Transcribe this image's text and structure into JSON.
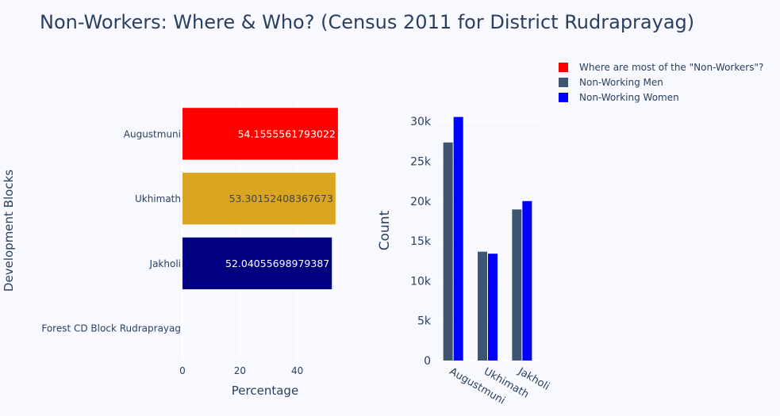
{
  "title": "Non-Workers: Where & Who? (Census 2011 for District Rudraprayag)",
  "chart_data": [
    {
      "type": "bar",
      "orientation": "horizontal",
      "categories": [
        "Augustmuni",
        "Ukhimath",
        "Jakholi",
        "Forest CD Block Rudraprayag"
      ],
      "series": [
        {
          "name": "Where are most of the \"Non-Workers\"?",
          "values": [
            54.1555561793022,
            53.30152408367673,
            52.04055698979387,
            null
          ],
          "labels": [
            "54.1555561793022",
            "53.30152408367673",
            "52.04055698979387",
            ""
          ],
          "colors": [
            "#ff0000",
            "#daa520",
            "#000080",
            "#ffffff"
          ],
          "label_colors": [
            "#ffffff",
            "#444444",
            "#ffffff",
            "#444444"
          ]
        }
      ],
      "xlabel": "Percentage",
      "ylabel": "Development Blocks",
      "xlim": [
        0,
        57.5
      ],
      "xticks": [
        0,
        20,
        40
      ],
      "xtick_labels": [
        "0",
        "20",
        "40"
      ],
      "grid": true
    },
    {
      "type": "bar",
      "orientation": "vertical",
      "categories": [
        "Augustmuni",
        "Ukhimath",
        "Jakholi"
      ],
      "series": [
        {
          "name": "Non-Working Men",
          "values": [
            27350,
            13650,
            18950
          ],
          "color": "#3d5570"
        },
        {
          "name": "Non-Working Women",
          "values": [
            30550,
            13400,
            20000
          ],
          "color": "#0000ff"
        }
      ],
      "xlabel": "",
      "ylabel": "Count",
      "ylim": [
        0,
        32500
      ],
      "yticks": [
        0,
        5000,
        10000,
        15000,
        20000,
        25000,
        30000
      ],
      "ytick_labels": [
        "0",
        "5k",
        "10k",
        "15k",
        "20k",
        "25k",
        "30k"
      ],
      "grid": true
    }
  ],
  "legend": {
    "position": "top-right",
    "items": [
      {
        "label": "Where are most of the \"Non-Workers\"?",
        "color": "#ff0000"
      },
      {
        "label": "Non-Working Men",
        "color": "#3d5570"
      },
      {
        "label": "Non-Working Women",
        "color": "#0000ff"
      }
    ]
  }
}
